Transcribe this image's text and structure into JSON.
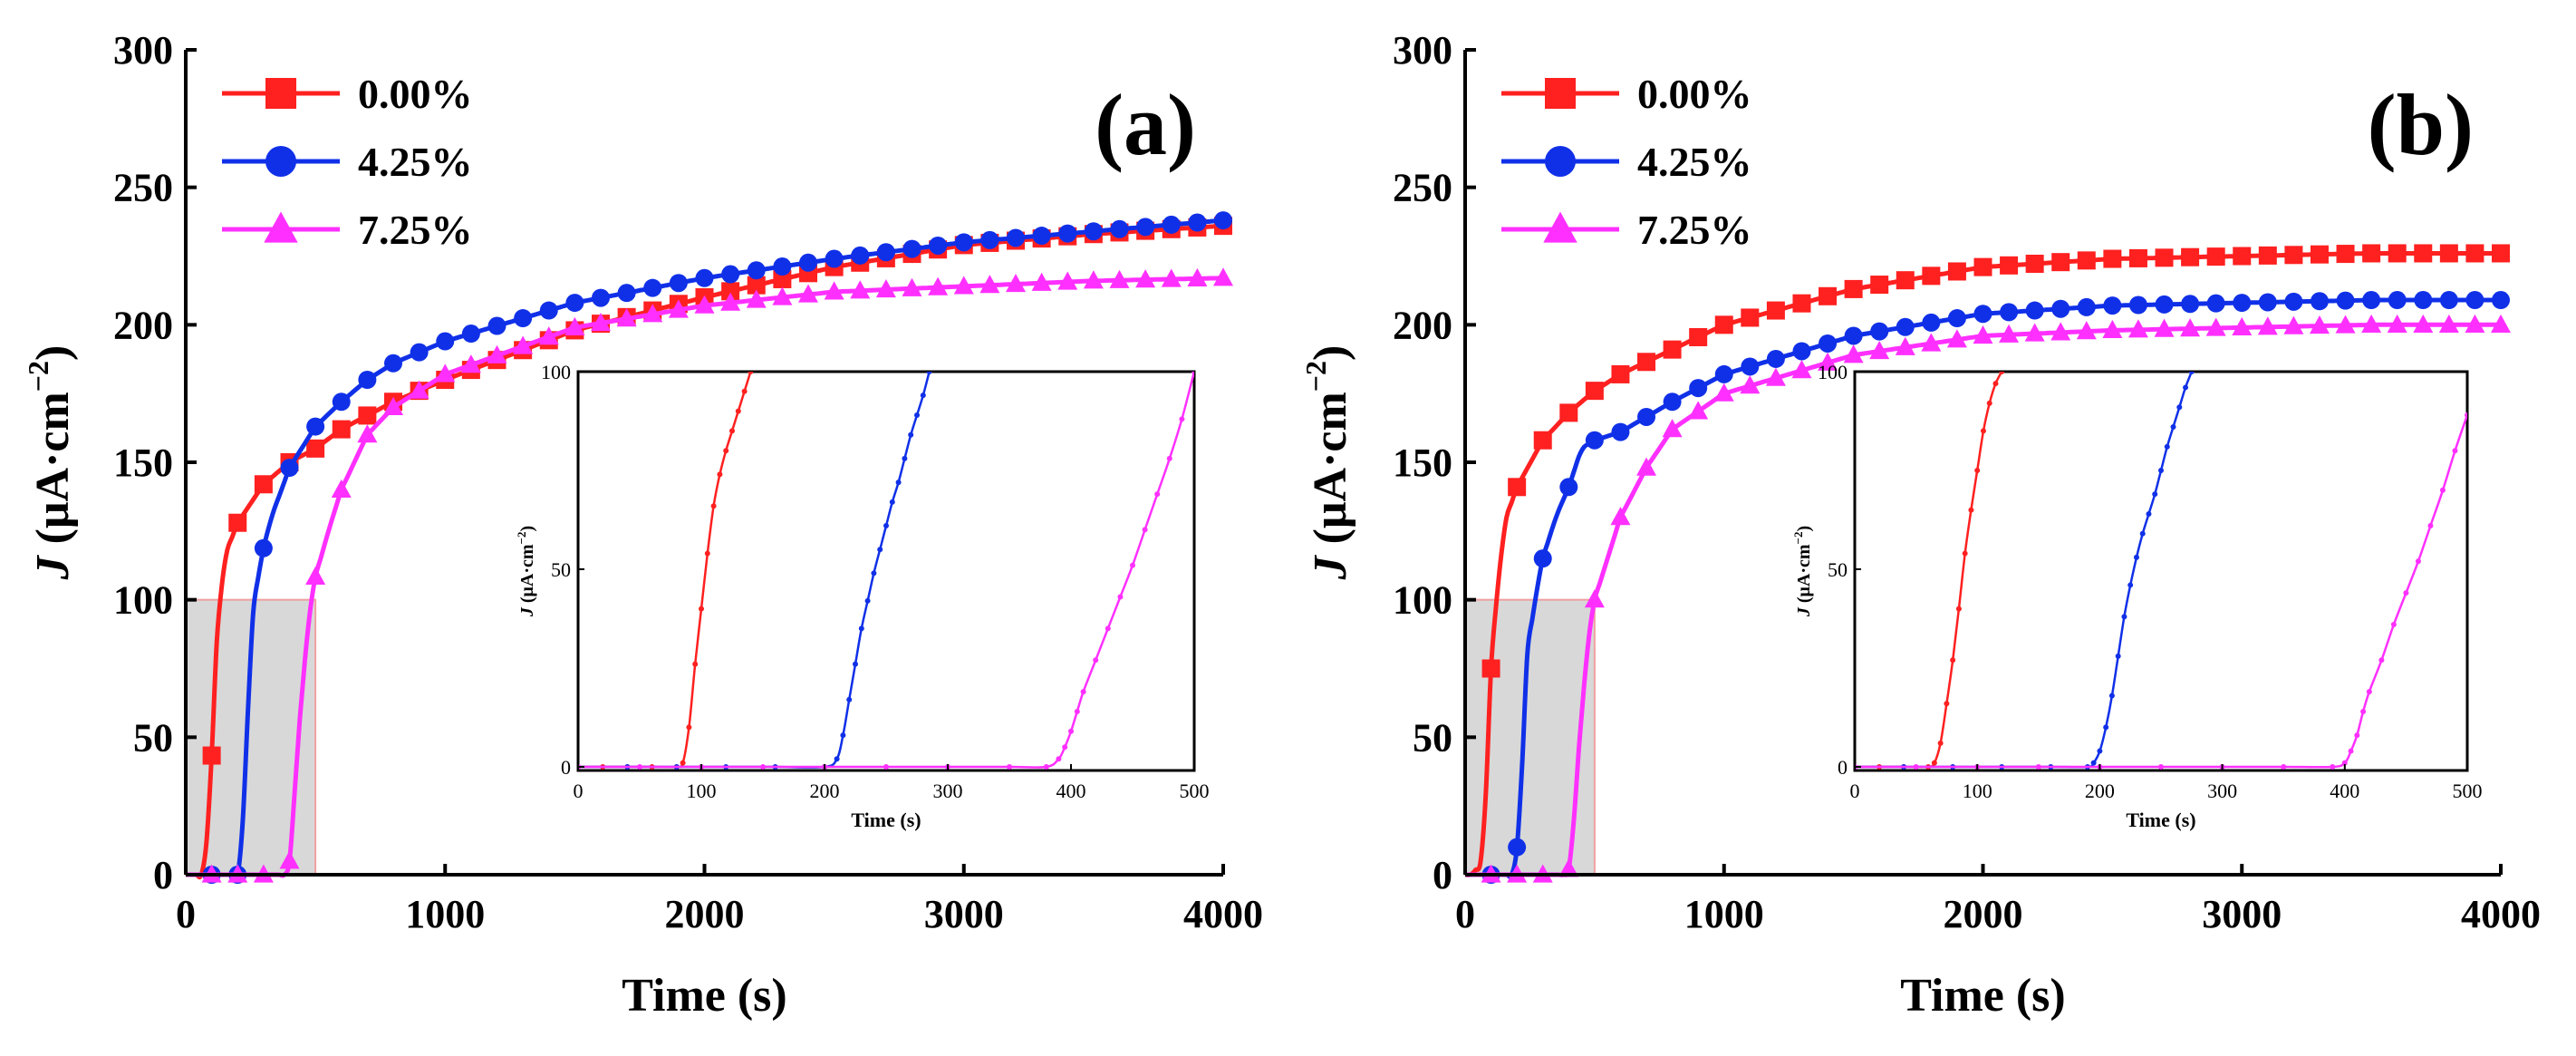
{
  "chart_data": [
    {
      "type": "line",
      "panel_label": "(a)",
      "xlabel": "Time (s)",
      "ylabel_italic": "J",
      "ylabel_rest": " (μA·cm",
      "ylabel_sup": "−2",
      "ylabel_close": ")",
      "xlim": [
        0,
        4000
      ],
      "ylim": [
        0,
        300
      ],
      "xticks": [
        0,
        1000,
        2000,
        3000,
        4000
      ],
      "yticks": [
        0,
        50,
        100,
        150,
        200,
        250,
        300
      ],
      "legend": [
        {
          "label": "0.00%",
          "color": "#ff2020",
          "marker": "square"
        },
        {
          "label": "4.25%",
          "color": "#1030e8",
          "marker": "circle"
        },
        {
          "label": "7.25%",
          "color": "#ff30ff",
          "marker": "triangle"
        }
      ],
      "series": [
        {
          "name": "0.00%",
          "color": "#ff2020",
          "marker": "square",
          "x": [
            0,
            40,
            70,
            95,
            110,
            130,
            160,
            200,
            300,
            400,
            500,
            600,
            800,
            1000,
            1500,
            2000,
            2500,
            3000,
            3500,
            4000
          ],
          "y": [
            0,
            0,
            0,
            30,
            70,
            100,
            118,
            128,
            142,
            150,
            155,
            162,
            172,
            180,
            198,
            210,
            221,
            229,
            233,
            236
          ]
        },
        {
          "name": "4.25%",
          "color": "#1030e8",
          "marker": "circle",
          "x": [
            0,
            100,
            200,
            220,
            240,
            260,
            290,
            330,
            400,
            500,
            600,
            700,
            800,
            1000,
            1500,
            2000,
            2500,
            3000,
            3500,
            4000
          ],
          "y": [
            0,
            0,
            0,
            20,
            60,
            95,
            115,
            130,
            148,
            163,
            172,
            180,
            186,
            194,
            208,
            217,
            224,
            230,
            234,
            238
          ]
        },
        {
          "name": "7.25%",
          "color": "#ff30ff",
          "marker": "triangle",
          "x": [
            0,
            100,
            200,
            300,
            380,
            400,
            420,
            450,
            490,
            550,
            600,
            700,
            800,
            1000,
            1500,
            2000,
            2500,
            3000,
            3500,
            4000
          ],
          "y": [
            0,
            0,
            0,
            0,
            0,
            5,
            30,
            70,
            105,
            125,
            140,
            160,
            170,
            182,
            199,
            207,
            212,
            214,
            216,
            217
          ]
        }
      ],
      "inset": {
        "xlabel": "Time (s)",
        "ylabel_italic": "J",
        "ylabel_rest": " (μA·cm",
        "ylabel_sup": "−2",
        "ylabel_close": ")",
        "xlim": [
          0,
          500
        ],
        "ylim": [
          0,
          100
        ],
        "xticks": [
          0,
          100,
          200,
          300,
          400,
          500
        ],
        "yticks": [
          0,
          50,
          100
        ],
        "series": [
          {
            "name": "0.00%",
            "color": "#ff2020",
            "x": [
              0,
              20,
              40,
              60,
              80,
              85,
              90,
              95,
              100,
              105,
              110,
              115,
              120,
              125,
              130,
              135,
              140
            ],
            "y": [
              0,
              0,
              0,
              0,
              0,
              1,
              10,
              26,
              40,
              54,
              66,
              74,
              80,
              85,
              90,
              95,
              100
            ]
          },
          {
            "name": "4.25%",
            "color": "#1030e8",
            "x": [
              0,
              40,
              80,
              120,
              160,
              200,
              210,
              215,
              220,
              225,
              230,
              235,
              240,
              245,
              250,
              255,
              260,
              265,
              270,
              275,
              280,
              285
            ],
            "y": [
              0,
              0,
              0,
              0,
              0,
              0,
              2,
              8,
              17,
              26,
              35,
              42,
              49,
              55,
              61,
              67,
              72,
              78,
              84,
              89,
              94,
              100
            ]
          },
          {
            "name": "7.25%",
            "color": "#ff30ff",
            "x": [
              0,
              50,
              100,
              150,
              200,
              250,
              300,
              350,
              380,
              390,
              395,
              400,
              405,
              410,
              420,
              430,
              440,
              450,
              460,
              470,
              480,
              490,
              500
            ],
            "y": [
              0,
              0,
              0,
              0,
              0,
              0,
              0,
              0,
              0,
              2,
              5,
              9,
              14,
              19,
              27,
              35,
              43,
              51,
              60,
              69,
              78,
              88,
              100
            ]
          }
        ]
      }
    },
    {
      "type": "line",
      "panel_label": "(b)",
      "xlabel": "Time (s)",
      "ylabel_italic": "J",
      "ylabel_rest": " (μA·cm",
      "ylabel_sup": "−2",
      "ylabel_close": ")",
      "xlim": [
        0,
        4000
      ],
      "ylim": [
        0,
        300
      ],
      "xticks": [
        0,
        1000,
        2000,
        3000,
        4000
      ],
      "yticks": [
        0,
        50,
        100,
        150,
        200,
        250,
        300
      ],
      "legend": [
        {
          "label": "0.00%",
          "color": "#ff2020",
          "marker": "square"
        },
        {
          "label": "4.25%",
          "color": "#1030e8",
          "marker": "circle"
        },
        {
          "label": "7.25%",
          "color": "#ff30ff",
          "marker": "triangle"
        }
      ],
      "series": [
        {
          "name": "0.00%",
          "color": "#ff2020",
          "marker": "square",
          "x": [
            0,
            30,
            60,
            80,
            100,
            130,
            160,
            200,
            300,
            400,
            500,
            600,
            800,
            1000,
            1500,
            2000,
            2500,
            3000,
            3500,
            4000
          ],
          "y": [
            0,
            0,
            5,
            30,
            75,
            110,
            130,
            141,
            158,
            168,
            176,
            182,
            191,
            200,
            213,
            221,
            224,
            225,
            226,
            226
          ]
        },
        {
          "name": "4.25%",
          "color": "#1030e8",
          "marker": "circle",
          "x": [
            0,
            100,
            180,
            200,
            220,
            240,
            270,
            300,
            350,
            400,
            450,
            500,
            600,
            800,
            1000,
            1500,
            2000,
            2500,
            3000,
            3500,
            4000
          ],
          "y": [
            0,
            0,
            0,
            10,
            40,
            80,
            100,
            115,
            130,
            141,
            155,
            158,
            161,
            172,
            182,
            196,
            204,
            207,
            208,
            209,
            209
          ]
        },
        {
          "name": "7.25%",
          "color": "#ff30ff",
          "marker": "triangle",
          "x": [
            0,
            100,
            200,
            300,
            380,
            400,
            420,
            450,
            480,
            500,
            550,
            600,
            700,
            800,
            1000,
            1500,
            2000,
            2500,
            3000,
            3500,
            4000
          ],
          "y": [
            0,
            0,
            0,
            0,
            0,
            2,
            20,
            60,
            88,
            100,
            115,
            130,
            148,
            162,
            175,
            189,
            196,
            198,
            199,
            200,
            200
          ]
        }
      ],
      "inset": {
        "xlabel": "Time (s)",
        "ylabel_italic": "J",
        "ylabel_rest": " (μA·cm",
        "ylabel_sup": "−2",
        "ylabel_close": ")",
        "xlim": [
          0,
          500
        ],
        "ylim": [
          0,
          100
        ],
        "xticks": [
          0,
          100,
          200,
          300,
          400,
          500
        ],
        "yticks": [
          0,
          50,
          100
        ],
        "series": [
          {
            "name": "0.00%",
            "color": "#ff2020",
            "x": [
              0,
              20,
              40,
              60,
              65,
              70,
              75,
              80,
              85,
              90,
              95,
              100,
              105,
              110,
              115,
              120
            ],
            "y": [
              0,
              0,
              0,
              0,
              1,
              6,
              16,
              27,
              40,
              54,
              65,
              75,
              85,
              92,
              97,
              100
            ]
          },
          {
            "name": "4.25%",
            "color": "#1030e8",
            "x": [
              0,
              40,
              80,
              120,
              160,
              190,
              195,
              200,
              205,
              210,
              215,
              220,
              225,
              230,
              235,
              240,
              245,
              250,
              255,
              260,
              265,
              270,
              275
            ],
            "y": [
              0,
              0,
              0,
              0,
              0,
              0,
              1,
              4,
              10,
              18,
              28,
              38,
              46,
              53,
              59,
              64,
              69,
              75,
              81,
              86,
              91,
              96,
              100
            ]
          },
          {
            "name": "7.25%",
            "color": "#ff30ff",
            "x": [
              0,
              50,
              100,
              150,
              200,
              250,
              300,
              350,
              390,
              400,
              405,
              410,
              415,
              420,
              430,
              440,
              450,
              460,
              470,
              480,
              490,
              500
            ],
            "y": [
              0,
              0,
              0,
              0,
              0,
              0,
              0,
              0,
              0,
              1,
              4,
              8,
              14,
              19,
              27,
              36,
              44,
              52,
              61,
              70,
              80,
              89
            ]
          }
        ]
      }
    }
  ]
}
